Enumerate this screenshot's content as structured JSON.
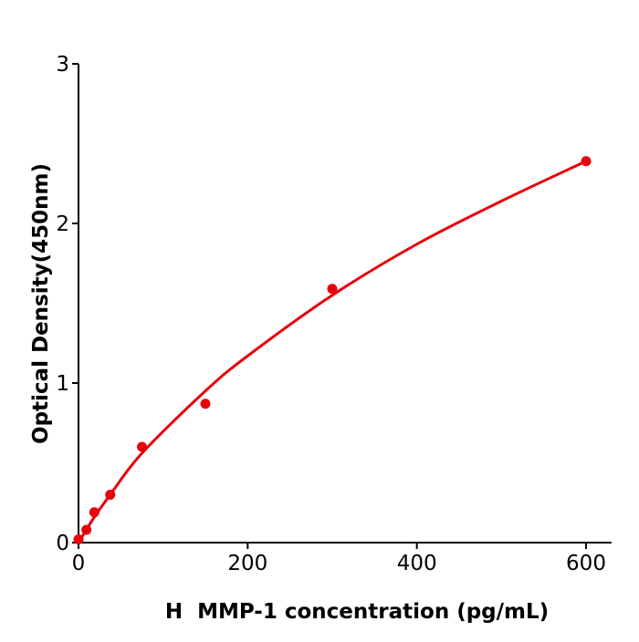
{
  "chart_data": {
    "type": "scatter",
    "title": "",
    "xlabel": "H  MMP-1 concentration (pg/mL)",
    "ylabel": "Optical Density(450nm)",
    "xlim": [
      0,
      630
    ],
    "ylim": [
      0,
      3
    ],
    "xticks": [
      0,
      200,
      400,
      600
    ],
    "yticks": [
      0,
      1,
      2,
      3
    ],
    "xtick_labels": [
      "0",
      "200",
      "400",
      "600"
    ],
    "ytick_labels": [
      "0",
      "1",
      "2",
      "3"
    ],
    "grid": false,
    "color": "#e8000b",
    "points": [
      {
        "x": 0,
        "y": 0.02
      },
      {
        "x": 9.375,
        "y": 0.08
      },
      {
        "x": 18.75,
        "y": 0.19
      },
      {
        "x": 37.5,
        "y": 0.3
      },
      {
        "x": 75,
        "y": 0.6
      },
      {
        "x": 150,
        "y": 0.87
      },
      {
        "x": 300,
        "y": 1.59
      },
      {
        "x": 600,
        "y": 2.39
      }
    ],
    "fit_curve": [
      {
        "x": 0,
        "y": 0.0
      },
      {
        "x": 18.75,
        "y": 0.16
      },
      {
        "x": 37.5,
        "y": 0.3
      },
      {
        "x": 75,
        "y": 0.56
      },
      {
        "x": 150,
        "y": 0.95
      },
      {
        "x": 200,
        "y": 1.17
      },
      {
        "x": 300,
        "y": 1.55
      },
      {
        "x": 400,
        "y": 1.87
      },
      {
        "x": 500,
        "y": 2.14
      },
      {
        "x": 600,
        "y": 2.39
      }
    ]
  }
}
